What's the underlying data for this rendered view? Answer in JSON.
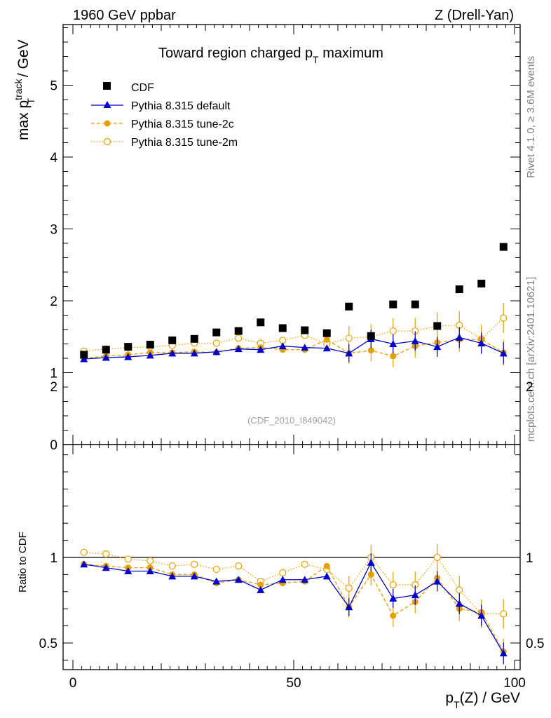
{
  "header": {
    "energy": "1960 GeV ppbar",
    "process": "Z (Drell-Yan)"
  },
  "side": {
    "rivet": "Rivet 4.1.0, ≥ 3.6M events",
    "mcplots": "mcplots.cern.ch [arXiv:2401.10621]"
  },
  "chart_data": [
    {
      "type": "scatter",
      "title": "Toward region charged p_T maximum",
      "title_main": "Toward region charged p",
      "title_sub": "T",
      "title_end": " maximum",
      "ylabel": "max p_T^track / GeV",
      "ylabel_main": "max p",
      "ylabel_sup": "track",
      "ylabel_sub": "T",
      "ylabel_end": " / GeV",
      "watermark": "(CDF_2010_I849042)",
      "xlim": [
        0,
        100
      ],
      "ylim": [
        0,
        5.8
      ],
      "yticks": [
        0,
        1,
        2,
        3,
        4,
        5
      ],
      "x": [
        2.5,
        7.5,
        12.5,
        17.5,
        22.5,
        27.5,
        32.5,
        37.5,
        42.5,
        47.5,
        52.5,
        57.5,
        62.5,
        67.5,
        72.5,
        77.5,
        82.5,
        87.5,
        92.5,
        97.5
      ],
      "legend": [
        "CDF",
        "Pythia 8.315 default",
        "Pythia 8.315 tune-2c",
        "Pythia 8.315 tune-2m"
      ],
      "series": [
        {
          "name": "CDF",
          "color": "#000000",
          "values": [
            1.25,
            1.32,
            1.36,
            1.39,
            1.45,
            1.47,
            1.56,
            1.58,
            1.7,
            1.62,
            1.59,
            1.55,
            1.92,
            1.51,
            1.95,
            1.95,
            1.65,
            2.16,
            2.24,
            2.75
          ]
        },
        {
          "name": "Pythia 8.315 default",
          "color": "#0000cc",
          "values": [
            1.19,
            1.21,
            1.22,
            1.24,
            1.27,
            1.27,
            1.29,
            1.33,
            1.32,
            1.37,
            1.35,
            1.34,
            1.27,
            1.47,
            1.4,
            1.44,
            1.36,
            1.49,
            1.41,
            1.27
          ]
        },
        {
          "name": "Pythia 8.315 tune-2c",
          "color": "#e69f00",
          "values": [
            1.2,
            1.23,
            1.25,
            1.28,
            1.28,
            1.29,
            1.28,
            1.34,
            1.35,
            1.32,
            1.32,
            1.46,
            1.27,
            1.31,
            1.23,
            1.37,
            1.42,
            1.46,
            1.46,
            1.28
          ]
        },
        {
          "name": "Pythia 8.315 tune-2m",
          "color": "#e69f00",
          "values": [
            1.3,
            1.33,
            1.35,
            1.36,
            1.38,
            1.41,
            1.41,
            1.48,
            1.41,
            1.45,
            1.52,
            1.4,
            1.48,
            1.5,
            1.58,
            1.58,
            1.65,
            1.66,
            1.47,
            1.76
          ]
        }
      ]
    },
    {
      "type": "scatter",
      "ylabel": "Ratio to CDF",
      "xlabel": "p_T(Z) / GeV",
      "xlabel_main": "p",
      "xlabel_sub": "T",
      "xlabel_end": "(Z) / GeV",
      "xlim": [
        0,
        100
      ],
      "ylim": [
        0.35,
        2.3
      ],
      "yticks": [
        0.5,
        1,
        2
      ],
      "xticks": [
        0,
        50,
        100
      ],
      "reference_line": 1,
      "x": [
        2.5,
        7.5,
        12.5,
        17.5,
        22.5,
        27.5,
        32.5,
        37.5,
        42.5,
        47.5,
        52.5,
        57.5,
        62.5,
        67.5,
        72.5,
        77.5,
        82.5,
        87.5,
        92.5,
        97.5
      ],
      "series": [
        {
          "name": "Pythia 8.315 default",
          "color": "#0000cc",
          "values": [
            0.96,
            0.94,
            0.92,
            0.92,
            0.89,
            0.89,
            0.86,
            0.87,
            0.81,
            0.87,
            0.87,
            0.89,
            0.71,
            0.97,
            0.76,
            0.78,
            0.86,
            0.73,
            0.66,
            0.44
          ]
        },
        {
          "name": "Pythia 8.315 tune-2c",
          "color": "#e69f00",
          "values": [
            0.96,
            0.95,
            0.94,
            0.94,
            0.9,
            0.9,
            0.85,
            0.87,
            0.84,
            0.85,
            0.86,
            0.95,
            0.71,
            0.9,
            0.66,
            0.74,
            0.88,
            0.7,
            0.68,
            0.45
          ]
        },
        {
          "name": "Pythia 8.315 tune-2m",
          "color": "#e69f00",
          "values": [
            1.03,
            1.02,
            0.99,
            0.98,
            0.95,
            0.96,
            0.93,
            0.95,
            0.86,
            0.91,
            0.96,
            0.93,
            0.82,
            1.0,
            0.84,
            0.84,
            1.0,
            0.81,
            0.67,
            0.67
          ]
        }
      ]
    }
  ]
}
